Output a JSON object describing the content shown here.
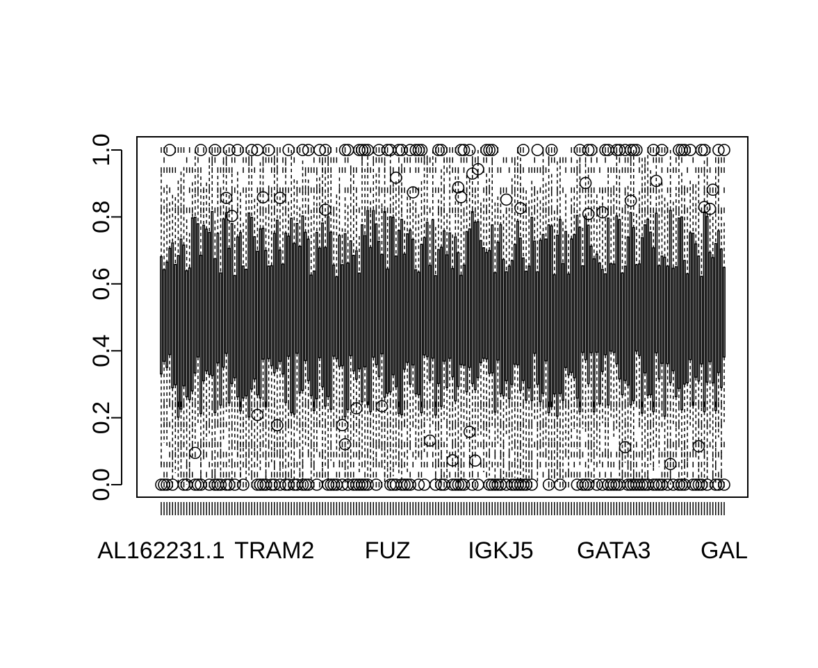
{
  "chart_data": {
    "type": "boxplot",
    "title": "",
    "xlabel": "",
    "ylabel": "",
    "ylim": [
      0,
      1
    ],
    "y_ticks": [
      "0.0",
      "0.2",
      "0.4",
      "0.6",
      "0.8",
      "1.0"
    ],
    "x_tick_labels": [
      "AL162231.1",
      "TRAM2",
      "FUZ",
      "IGKJ5",
      "GATA3",
      "GAL"
    ],
    "n_boxes": 200,
    "value_range": {
      "min": 0.0,
      "max": 1.0
    },
    "typical_box": {
      "q1": 0.25,
      "median": 0.5,
      "q3": 0.75
    },
    "grid": false,
    "legend": "none",
    "line_color": "#000000"
  }
}
